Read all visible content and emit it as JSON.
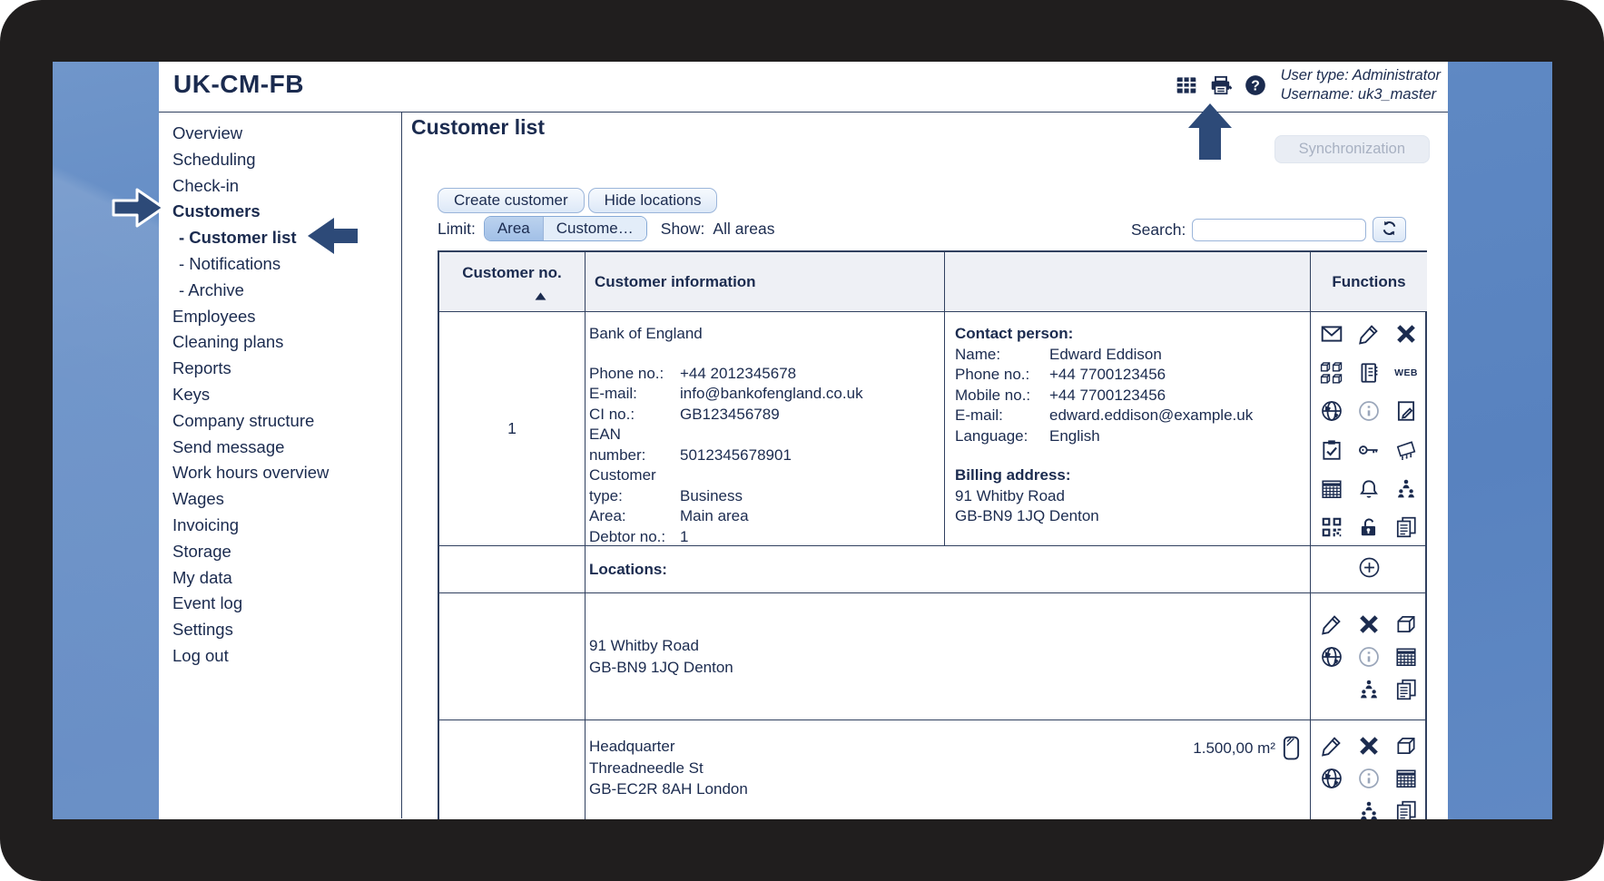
{
  "window": {
    "title": "UK-CM-FB"
  },
  "header": {
    "icons": [
      "table-grid-icon",
      "printer-icon",
      "help-icon"
    ],
    "user_type_line": "User type: Administrator",
    "username_line": "Username: uk3_master"
  },
  "sidebar": {
    "items": [
      {
        "label": "Overview"
      },
      {
        "label": "Scheduling"
      },
      {
        "label": "Check-in"
      },
      {
        "label": "Customers",
        "bold": true
      },
      {
        "label": "- Customer list",
        "bold": true,
        "indent": true
      },
      {
        "label": "- Notifications",
        "indent": true
      },
      {
        "label": "- Archive",
        "indent": true
      },
      {
        "label": "Employees"
      },
      {
        "label": "Cleaning plans"
      },
      {
        "label": "Reports"
      },
      {
        "label": "Keys"
      },
      {
        "label": "Company structure"
      },
      {
        "label": "Send message"
      },
      {
        "label": "Work hours overview"
      },
      {
        "label": "Wages"
      },
      {
        "label": "Invoicing"
      },
      {
        "label": "Storage"
      },
      {
        "label": "My data"
      },
      {
        "label": "Event log"
      },
      {
        "label": "Settings"
      },
      {
        "label": "Log out"
      }
    ]
  },
  "main": {
    "page_title": "Customer list",
    "sync_button": "Synchronization",
    "toolbar": {
      "create_button": "Create customer",
      "hide_locations_button": "Hide locations",
      "limit_label": "Limit:",
      "limit_tabs": [
        {
          "label": "Area",
          "selected": true
        },
        {
          "label": "Custome…",
          "selected": false
        }
      ],
      "show_label": "Show:",
      "show_value": "All areas",
      "search_label": "Search:",
      "search_value": "",
      "refresh_icon": "refresh-icon"
    },
    "table": {
      "headers": {
        "customer_no": "Customer no.",
        "customer_information": "Customer information",
        "contact_column": "",
        "functions": "Functions"
      },
      "sort_icon": "sort-asc-icon",
      "customer": {
        "number": "1",
        "name": "Bank of England",
        "info_rows": [
          [
            "Phone no.:",
            "+44 2012345678"
          ],
          [
            "E-mail:",
            "info@bankofengland.co.uk"
          ],
          [
            "CI no.:",
            "GB123456789"
          ],
          [
            "EAN number:",
            "5012345678901"
          ],
          [
            "Customer type:",
            "Business"
          ],
          [
            "Area:",
            "Main area"
          ],
          [
            "Debtor no.:",
            "1"
          ]
        ],
        "contact_heading": "Contact person:",
        "contact_rows": [
          [
            "Name:",
            "Edward Eddison"
          ],
          [
            "Phone no.:",
            "+44 7700123456"
          ],
          [
            "Mobile no.:",
            "+44 7700123456"
          ],
          [
            "E-mail:",
            "edward.eddison@example.uk"
          ],
          [
            "Language:",
            "English"
          ]
        ],
        "billing_heading": "Billing address:",
        "billing_lines": [
          "91 Whitby Road",
          "GB-BN9 1JQ Denton"
        ],
        "function_icons": [
          "mail-icon",
          "edit-pen-icon",
          "delete-x-icon",
          "cubes-icon",
          "ledger-icon",
          "web-icon",
          "globe-icon",
          "info-icon",
          "note-edit-icon",
          "clipboard-check-icon",
          "key-icon",
          "floor-plan-icon",
          "calendar-icon",
          "bell-icon",
          "org-people-icon",
          "qr-code-icon",
          "unlock-icon",
          "copy-docs-icon"
        ]
      },
      "locations_header": {
        "label": "Locations:",
        "add_icon": "add-circle-icon"
      },
      "locations": [
        {
          "lines": [
            "91 Whitby Road",
            "GB-BN9 1JQ Denton"
          ],
          "function_icons": [
            "edit-pen-icon",
            "delete-x-icon",
            "box-icon",
            "globe-icon",
            "info-icon",
            "calendar-icon",
            "org-people-icon",
            "copy-docs-icon"
          ]
        },
        {
          "lines": [
            "Headquarter",
            "Threadneedle St",
            "GB-EC2R 8AH London"
          ],
          "area": "1.500,00 m²",
          "area_icon": "area-sketch-icon",
          "function_icons": [
            "edit-pen-icon",
            "delete-x-icon",
            "box-icon",
            "globe-icon",
            "info-icon",
            "calendar-icon",
            "org-people-icon",
            "copy-docs-icon"
          ]
        }
      ]
    }
  },
  "annotations": {
    "arrows": [
      "arrow-right-icon",
      "arrow-left-icon",
      "arrow-up-icon"
    ]
  },
  "colors": {
    "accent_navy": "#1b2b4f",
    "desktop_blue": "#5e88c3",
    "frame_black": "#201e1e",
    "control_border": "#9bb5da",
    "selected_tab": "#a9c5e9",
    "table_border": "#30405f",
    "header_row_bg": "#eef0f5",
    "disabled_text": "#a8b1c2",
    "arrow_blue": "#2d4a78"
  }
}
